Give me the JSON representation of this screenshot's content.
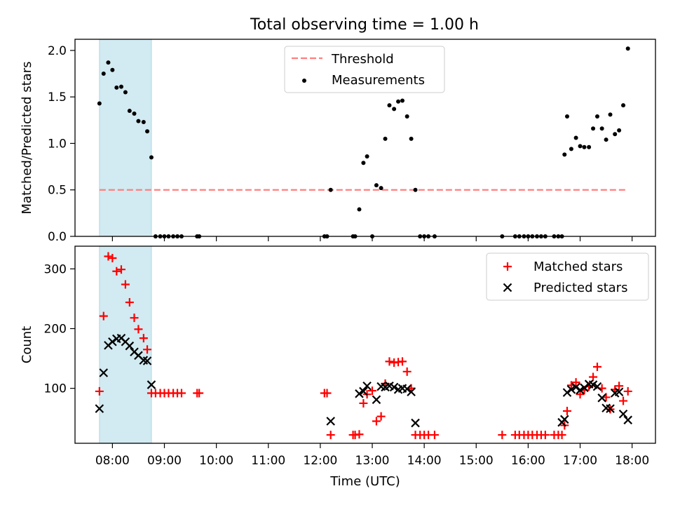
{
  "title": "Total observing time = 1.00 h",
  "colors": {
    "threshold": "#ff7f7f",
    "measurement": "#000000",
    "matched": "#ff0000",
    "predicted": "#000000",
    "shade": "#add8e6"
  },
  "chart_data": [
    {
      "type": "scatter",
      "ylabel": "Matched/Predicted stars",
      "xlim": [
        7.28,
        18.45
      ],
      "ylim": [
        0,
        2.12
      ],
      "yticks": [
        0.0,
        0.5,
        1.0,
        1.5,
        2.0
      ],
      "ytick_labels": [
        "0.0",
        "0.5",
        "1.0",
        "1.5",
        "2.0"
      ],
      "shaded_region": [
        7.75,
        8.75
      ],
      "legend": {
        "position": "top-center",
        "entries": [
          "Threshold",
          "Measurements"
        ]
      },
      "threshold": {
        "name": "Threshold",
        "x": [
          7.75,
          17.92
        ],
        "y": 0.5,
        "style": "dashed"
      },
      "series": [
        {
          "name": "Measurements",
          "x": [
            7.75,
            7.83,
            7.92,
            8.0,
            8.08,
            8.17,
            8.25,
            8.33,
            8.42,
            8.5,
            8.6,
            8.67,
            8.75,
            8.83,
            8.92,
            9.0,
            9.08,
            9.17,
            9.25,
            9.33,
            9.63,
            9.67,
            12.08,
            12.13,
            12.2,
            12.63,
            12.67,
            12.75,
            12.83,
            12.9,
            13.0,
            13.08,
            13.17,
            13.25,
            13.33,
            13.42,
            13.5,
            13.58,
            13.67,
            13.75,
            13.83,
            13.92,
            14.0,
            14.08,
            14.2,
            15.5,
            15.75,
            15.83,
            15.92,
            16.0,
            16.08,
            16.17,
            16.25,
            16.33,
            16.5,
            16.58,
            16.65,
            16.7,
            16.75,
            16.83,
            16.92,
            17.0,
            17.08,
            17.17,
            17.25,
            17.33,
            17.42,
            17.5,
            17.58,
            17.67,
            17.75,
            17.83,
            17.92
          ],
          "y": [
            1.43,
            1.75,
            1.87,
            1.79,
            1.6,
            1.61,
            1.55,
            1.35,
            1.32,
            1.24,
            1.23,
            1.13,
            0.85,
            0.0,
            0.0,
            0.0,
            0.0,
            0.0,
            0.0,
            0.0,
            0.0,
            0.0,
            0.0,
            0.0,
            0.5,
            0.0,
            0.0,
            0.29,
            0.79,
            0.86,
            0.0,
            0.55,
            0.52,
            1.05,
            1.41,
            1.37,
            1.45,
            1.46,
            1.29,
            1.05,
            0.5,
            0.0,
            0.0,
            0.0,
            0.0,
            0.0,
            0.0,
            0.0,
            0.0,
            0.0,
            0.0,
            0.0,
            0.0,
            0.0,
            0.0,
            0.0,
            0.0,
            0.88,
            1.29,
            0.94,
            1.06,
            0.97,
            0.96,
            0.96,
            1.16,
            1.29,
            1.16,
            1.04,
            1.31,
            1.1,
            1.14,
            1.41,
            2.02
          ]
        }
      ]
    },
    {
      "type": "scatter",
      "ylabel": "Count",
      "xlabel": "Time (UTC)",
      "xlim": [
        7.28,
        18.45
      ],
      "ylim": [
        8,
        338
      ],
      "yticks": [
        100,
        200,
        300
      ],
      "ytick_labels": [
        "100",
        "200",
        "300"
      ],
      "xticks": [
        8,
        9,
        10,
        11,
        12,
        13,
        14,
        15,
        16,
        17,
        18
      ],
      "xtick_labels": [
        "08:00",
        "09:00",
        "10:00",
        "11:00",
        "12:00",
        "13:00",
        "14:00",
        "15:00",
        "16:00",
        "17:00",
        "18:00"
      ],
      "shaded_region": [
        7.75,
        8.75
      ],
      "legend": {
        "position": "top-right",
        "entries": [
          "Matched stars",
          "Predicted stars"
        ]
      },
      "series": [
        {
          "name": "Matched stars",
          "marker": "+",
          "x": [
            7.75,
            7.83,
            7.92,
            8.0,
            8.08,
            8.17,
            8.25,
            8.33,
            8.42,
            8.5,
            8.6,
            8.67,
            8.75,
            8.83,
            8.92,
            9.0,
            9.08,
            9.17,
            9.25,
            9.33,
            9.63,
            9.67,
            12.08,
            12.13,
            12.2,
            12.63,
            12.67,
            12.75,
            12.83,
            12.9,
            13.0,
            13.08,
            13.17,
            13.25,
            13.33,
            13.42,
            13.5,
            13.58,
            13.67,
            13.75,
            13.83,
            13.92,
            14.0,
            14.08,
            14.2,
            15.5,
            15.75,
            15.83,
            15.92,
            16.0,
            16.08,
            16.17,
            16.25,
            16.33,
            16.5,
            16.58,
            16.65,
            16.7,
            16.75,
            16.83,
            16.92,
            17.0,
            17.08,
            17.17,
            17.25,
            17.33,
            17.42,
            17.5,
            17.58,
            17.67,
            17.75,
            17.83,
            17.92
          ],
          "y": [
            95,
            221,
            321,
            318,
            296,
            299,
            274,
            244,
            218,
            199,
            184,
            165,
            92,
            92,
            92,
            92,
            92,
            92,
            92,
            92,
            92,
            92,
            92,
            92,
            22,
            22,
            22,
            23,
            75,
            90,
            96,
            45,
            53,
            108,
            145,
            143,
            144,
            145,
            128,
            100,
            22,
            22,
            22,
            22,
            22,
            22,
            22,
            22,
            22,
            22,
            22,
            22,
            22,
            22,
            22,
            22,
            22,
            38,
            62,
            105,
            110,
            90,
            97,
            103,
            119,
            136,
            100,
            85,
            65,
            98,
            104,
            79,
            95
          ]
        },
        {
          "name": "Predicted stars",
          "marker": "x",
          "x": [
            7.75,
            7.83,
            7.92,
            8.0,
            8.08,
            8.17,
            8.25,
            8.33,
            8.42,
            8.5,
            8.6,
            8.67,
            8.75,
            12.2,
            12.75,
            12.83,
            12.9,
            13.08,
            13.17,
            13.25,
            13.33,
            13.42,
            13.5,
            13.58,
            13.67,
            13.75,
            13.83,
            16.65,
            16.7,
            16.75,
            16.83,
            16.92,
            17.0,
            17.08,
            17.17,
            17.25,
            17.33,
            17.42,
            17.5,
            17.58,
            17.67,
            17.75,
            17.83,
            17.92
          ],
          "y": [
            66,
            126,
            172,
            178,
            183,
            184,
            178,
            171,
            161,
            155,
            147,
            146,
            106,
            45,
            91,
            95,
            104,
            81,
            103,
            102,
            104,
            102,
            98,
            100,
            99,
            94,
            42,
            43,
            48,
            93,
            98,
            102,
            97,
            101,
            107,
            106,
            103,
            84,
            67,
            66,
            92,
            94,
            57,
            47
          ]
        }
      ]
    }
  ]
}
